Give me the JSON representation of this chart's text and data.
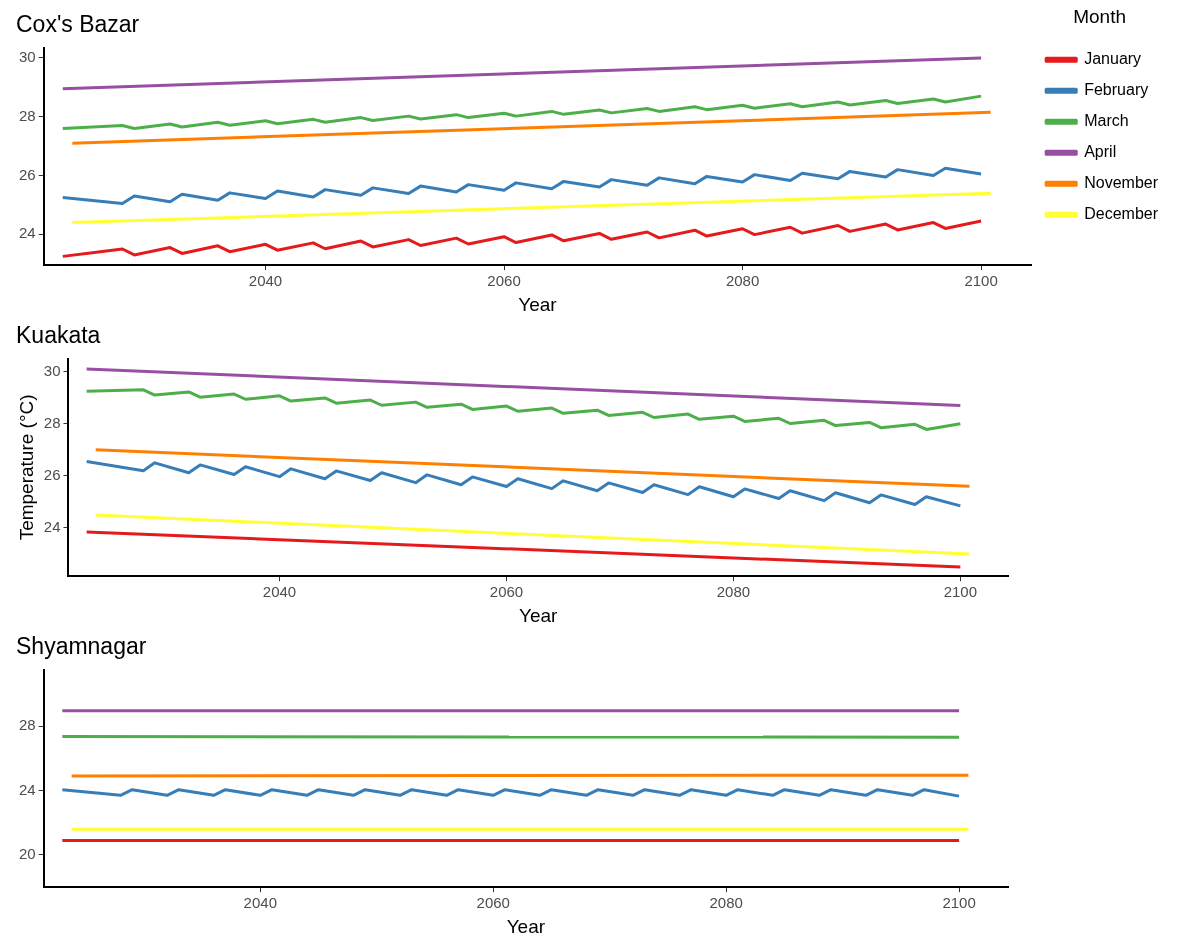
{
  "chart_data": [
    {
      "type": "line",
      "title": "Cox's Bazar",
      "xlabel": "Year",
      "legend": "right",
      "legend_title": "Month",
      "marker": "none",
      "xlim": [
        2021.4,
        2104.2
      ],
      "xticks": [
        2040,
        2060,
        2080,
        2100
      ],
      "ylim": [
        22.95,
        30.35
      ],
      "yticks": [
        24,
        26,
        28,
        30
      ],
      "series": [
        {
          "name": "January",
          "color": "#e41a1c",
          "x": [
            2023,
            2028,
            2029,
            2032,
            2033,
            2036,
            2037,
            2040,
            2041,
            2044,
            2045,
            2048,
            2049,
            2052,
            2053,
            2056,
            2057,
            2060,
            2061,
            2064,
            2065,
            2068,
            2069,
            2072,
            2073,
            2076,
            2077,
            2080,
            2081,
            2084,
            2085,
            2088,
            2089,
            2092,
            2093,
            2096,
            2097,
            2100
          ],
          "values": [
            23.25,
            23.5,
            23.3,
            23.55,
            23.35,
            23.61,
            23.41,
            23.66,
            23.46,
            23.71,
            23.51,
            23.77,
            23.57,
            23.82,
            23.62,
            23.87,
            23.67,
            23.92,
            23.72,
            23.98,
            23.78,
            24.03,
            23.83,
            24.08,
            23.88,
            24.14,
            23.94,
            24.19,
            23.99,
            24.24,
            24.04,
            24.3,
            24.1,
            24.35,
            24.15,
            24.4,
            24.2,
            24.45
          ]
        },
        {
          "name": "February",
          "color": "#377eb8",
          "x": [
            2023,
            2028,
            2029,
            2032,
            2033,
            2036,
            2037,
            2040,
            2041,
            2044,
            2045,
            2048,
            2049,
            2052,
            2053,
            2056,
            2057,
            2060,
            2061,
            2064,
            2065,
            2068,
            2069,
            2072,
            2073,
            2076,
            2077,
            2080,
            2081,
            2084,
            2085,
            2088,
            2089,
            2092,
            2093,
            2096,
            2097,
            2100
          ],
          "values": [
            25.25,
            25.05,
            25.3,
            25.11,
            25.36,
            25.16,
            25.41,
            25.22,
            25.47,
            25.27,
            25.52,
            25.33,
            25.58,
            25.39,
            25.64,
            25.44,
            25.69,
            25.5,
            25.75,
            25.55,
            25.8,
            25.61,
            25.86,
            25.67,
            25.92,
            25.72,
            25.97,
            25.78,
            26.03,
            25.83,
            26.08,
            25.89,
            26.14,
            25.95,
            26.2,
            26.0,
            26.25,
            26.05
          ]
        },
        {
          "name": "March",
          "color": "#4daf4a",
          "x": [
            2023,
            2028,
            2029,
            2032,
            2033,
            2036,
            2037,
            2040,
            2041,
            2044,
            2045,
            2048,
            2049,
            2052,
            2053,
            2056,
            2057,
            2060,
            2061,
            2064,
            2065,
            2068,
            2069,
            2072,
            2073,
            2076,
            2077,
            2080,
            2081,
            2084,
            2085,
            2088,
            2089,
            2092,
            2093,
            2096,
            2097,
            2100
          ],
          "values": [
            27.6,
            27.7,
            27.6,
            27.75,
            27.65,
            27.81,
            27.71,
            27.86,
            27.76,
            27.91,
            27.81,
            27.97,
            27.87,
            28.02,
            27.92,
            28.07,
            27.97,
            28.12,
            28.02,
            28.18,
            28.08,
            28.23,
            28.13,
            28.28,
            28.18,
            28.34,
            28.24,
            28.39,
            28.29,
            28.44,
            28.34,
            28.5,
            28.4,
            28.55,
            28.45,
            28.6,
            28.5,
            28.7
          ]
        },
        {
          "name": "April",
          "color": "#984ea3",
          "x": [
            2023,
            2100
          ],
          "values": [
            28.95,
            30.0
          ]
        },
        {
          "name": "November",
          "color": "#ff7f00",
          "x": [
            2023.8,
            2100.8
          ],
          "values": [
            27.1,
            28.15
          ]
        },
        {
          "name": "December",
          "color": "#ffff33",
          "x": [
            2023.8,
            2100.8
          ],
          "values": [
            24.4,
            25.4
          ]
        }
      ]
    },
    {
      "type": "line",
      "title": "Kuakata",
      "xlabel": "Year",
      "ylabel": "Temperature (°C)",
      "marker": "none",
      "xlim": [
        2021.4,
        2104.2
      ],
      "xticks": [
        2040,
        2060,
        2080,
        2100
      ],
      "ylim": [
        22.15,
        30.5
      ],
      "yticks": [
        24,
        26,
        28,
        30
      ],
      "series": [
        {
          "color": "#e41a1c",
          "x": [
            2023,
            2100
          ],
          "values": [
            23.85,
            22.5
          ]
        },
        {
          "color": "#377eb8",
          "x": [
            2023,
            2028,
            2029,
            2032,
            2033,
            2036,
            2037,
            2040,
            2041,
            2044,
            2045,
            2048,
            2049,
            2052,
            2053,
            2056,
            2057,
            2060,
            2061,
            2064,
            2065,
            2068,
            2069,
            2072,
            2073,
            2076,
            2077,
            2080,
            2081,
            2084,
            2085,
            2088,
            2089,
            2092,
            2093,
            2096,
            2097,
            2100
          ],
          "values": [
            26.55,
            26.2,
            26.5,
            26.12,
            26.42,
            26.05,
            26.35,
            25.97,
            26.27,
            25.89,
            26.19,
            25.82,
            26.12,
            25.74,
            26.04,
            25.66,
            25.96,
            25.59,
            25.89,
            25.51,
            25.81,
            25.43,
            25.73,
            25.36,
            25.66,
            25.28,
            25.58,
            25.2,
            25.5,
            25.13,
            25.43,
            25.05,
            25.35,
            24.97,
            25.27,
            24.9,
            25.2,
            24.85
          ]
        },
        {
          "color": "#4daf4a",
          "x": [
            2023,
            2028,
            2029,
            2032,
            2033,
            2036,
            2037,
            2040,
            2041,
            2044,
            2045,
            2048,
            2049,
            2052,
            2053,
            2056,
            2057,
            2060,
            2061,
            2064,
            2065,
            2068,
            2069,
            2072,
            2073,
            2076,
            2077,
            2080,
            2081,
            2084,
            2085,
            2088,
            2089,
            2092,
            2093,
            2096,
            2097,
            2100
          ],
          "values": [
            29.25,
            29.3,
            29.1,
            29.22,
            29.02,
            29.14,
            28.94,
            29.07,
            28.87,
            28.99,
            28.79,
            28.91,
            28.71,
            28.83,
            28.63,
            28.75,
            28.55,
            28.68,
            28.48,
            28.6,
            28.4,
            28.52,
            28.32,
            28.44,
            28.24,
            28.37,
            28.17,
            28.29,
            28.09,
            28.21,
            28.01,
            28.13,
            27.93,
            28.05,
            27.85,
            27.98,
            27.78,
            28.0
          ]
        },
        {
          "color": "#984ea3",
          "x": [
            2023,
            2100
          ],
          "values": [
            30.1,
            28.7
          ]
        },
        {
          "color": "#ff7f00",
          "x": [
            2023.8,
            2100.8
          ],
          "values": [
            27.0,
            25.6
          ]
        },
        {
          "color": "#ffff33",
          "x": [
            2023.8,
            2100.8
          ],
          "values": [
            24.5,
            23.0
          ]
        }
      ]
    },
    {
      "type": "line",
      "title": "Shyamnagar",
      "xlabel": "Year",
      "marker": "none",
      "xlim": [
        2021.4,
        2104.2
      ],
      "xticks": [
        2040,
        2060,
        2080,
        2100
      ],
      "ylim": [
        18,
        31.5
      ],
      "yticks": [
        20,
        24,
        28
      ],
      "series": [
        {
          "color": "#e41a1c",
          "x": [
            2023,
            2100
          ],
          "values": [
            20.9,
            20.9
          ]
        },
        {
          "color": "#377eb8",
          "x": [
            2023,
            2028,
            2029,
            2032,
            2033,
            2036,
            2037,
            2040,
            2041,
            2044,
            2045,
            2048,
            2049,
            2052,
            2053,
            2056,
            2057,
            2060,
            2061,
            2064,
            2065,
            2068,
            2069,
            2072,
            2073,
            2076,
            2077,
            2080,
            2081,
            2084,
            2085,
            2088,
            2089,
            2092,
            2093,
            2096,
            2097,
            2100
          ],
          "values": [
            24.05,
            23.7,
            24.05,
            23.7,
            24.05,
            23.7,
            24.05,
            23.7,
            24.05,
            23.7,
            24.05,
            23.7,
            24.05,
            23.7,
            24.05,
            23.7,
            24.05,
            23.7,
            24.05,
            23.7,
            24.05,
            23.7,
            24.05,
            23.7,
            24.05,
            23.7,
            24.05,
            23.7,
            24.05,
            23.7,
            24.05,
            23.7,
            24.05,
            23.7,
            24.05,
            23.7,
            24.05,
            23.65
          ]
        },
        {
          "color": "#4daf4a",
          "x": [
            2023,
            2100
          ],
          "values": [
            27.35,
            27.3
          ]
        },
        {
          "color": "#984ea3",
          "x": [
            2023,
            2100
          ],
          "values": [
            28.95,
            28.95
          ]
        },
        {
          "color": "#ff7f00",
          "x": [
            2023.8,
            2100.8
          ],
          "values": [
            24.9,
            24.95
          ]
        },
        {
          "color": "#ffff33",
          "x": [
            2023.8,
            2100.8
          ],
          "values": [
            21.6,
            21.6
          ]
        }
      ]
    }
  ]
}
